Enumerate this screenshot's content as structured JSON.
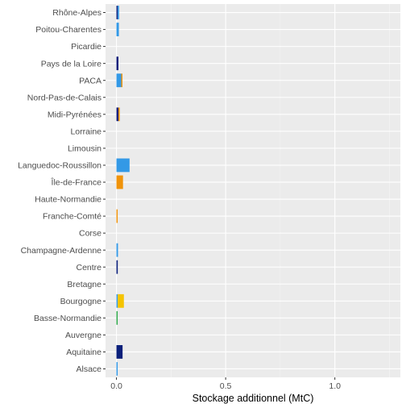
{
  "chart_data": {
    "type": "bar",
    "orientation": "horizontal",
    "stacked": true,
    "xlabel": "Stockage additionnel (MtC)",
    "ylabel": "",
    "xlim": [
      -0.05,
      1.3
    ],
    "xticks": [
      0.0,
      0.5,
      1.0
    ],
    "xtick_labels": [
      "0.0",
      "0.5",
      "1.0"
    ],
    "grid": true,
    "panel_background": "#ebebeb",
    "categories": [
      "Rhône-Alpes",
      "Poitou-Charentes",
      "Picardie",
      "Pays de la Loire",
      "PACA",
      "Nord-Pas-de-Calais",
      "Midi-Pyrénées",
      "Lorraine",
      "Limousin",
      "Languedoc-Roussillon",
      "Île-de-France",
      "Haute-Normandie",
      "Franche-Comté",
      "Corse",
      "Champagne-Ardenne",
      "Centre",
      "Bretagne",
      "Bourgogne",
      "Basse-Normandie",
      "Auvergne",
      "Aquitaine",
      "Alsace"
    ],
    "series": [
      {
        "color": "#0a1f7a",
        "values": [
          0.006,
          0.0,
          0.0,
          0.009,
          0.0,
          0.0,
          0.009,
          0.0,
          0.0,
          0.0,
          0.0,
          0.0,
          0.0,
          0.0,
          0.0,
          0.006,
          0.0,
          0.0,
          0.0,
          0.0,
          0.028,
          0.0
        ]
      },
      {
        "color": "#3399e6",
        "values": [
          0.006,
          0.011,
          0.0,
          0.0,
          0.022,
          0.0,
          0.0,
          0.0,
          0.0,
          0.06,
          0.0,
          0.0,
          0.0,
          0.0,
          0.007,
          0.0,
          0.0,
          0.006,
          0.0,
          0.0,
          0.0,
          0.003
        ]
      },
      {
        "color": "#f0930a",
        "values": [
          0.0,
          0.0,
          0.0,
          0.0,
          0.005,
          0.0,
          0.006,
          0.0,
          0.0,
          0.0,
          0.03,
          0.0,
          0.004,
          0.0,
          0.0,
          0.0,
          0.0,
          0.0,
          0.0,
          0.0,
          0.0,
          0.0
        ]
      },
      {
        "color": "#f5c400",
        "values": [
          0.0,
          0.0,
          0.0,
          0.0,
          0.0,
          0.0,
          0.0,
          0.0,
          0.0,
          0.0,
          0.0,
          0.0,
          0.0,
          0.0,
          0.0,
          0.0,
          0.0,
          0.028,
          0.0,
          0.0,
          0.0,
          0.0
        ]
      },
      {
        "color": "#2ea84a",
        "values": [
          0.0,
          0.0,
          0.0,
          0.0,
          0.0,
          0.0,
          0.0,
          0.0,
          0.0,
          0.0,
          0.0,
          0.0,
          0.0,
          0.0,
          0.0,
          0.0,
          0.0,
          0.0,
          0.004,
          0.0,
          0.0,
          0.0
        ]
      }
    ]
  }
}
